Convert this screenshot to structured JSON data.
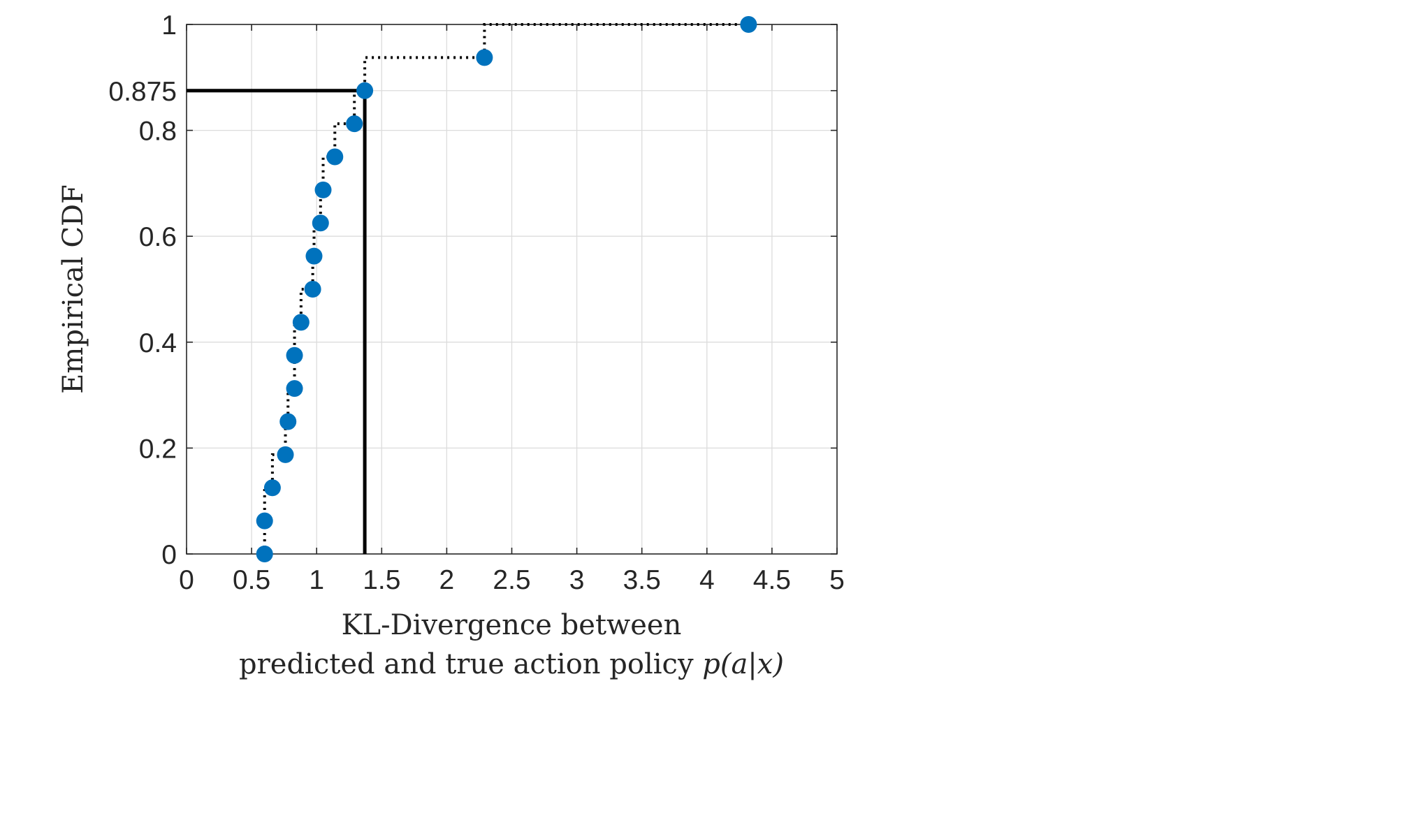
{
  "chart_data": {
    "type": "scatter",
    "title": "",
    "xlabel_lines": [
      "KL-Divergence between",
      "predicted and true action policy "
    ],
    "xlabel_math": "p(a|x)",
    "ylabel": "Empirical CDF",
    "xlim": [
      0,
      5
    ],
    "ylim": [
      0,
      1
    ],
    "xticks": [
      0,
      0.5,
      1,
      1.5,
      2,
      2.5,
      3,
      3.5,
      4,
      4.5,
      5
    ],
    "xtick_labels": [
      "0",
      "0.5",
      "1",
      "1.5",
      "2",
      "2.5",
      "3",
      "3.5",
      "4",
      "4.5",
      "5"
    ],
    "yticks": [
      0,
      0.2,
      0.4,
      0.6,
      0.8,
      0.875,
      1
    ],
    "ytick_labels": [
      "0",
      "0.2",
      "0.4",
      "0.6",
      "0.8",
      "0.875",
      "1"
    ],
    "grid": true,
    "marker_color": "#0072BD",
    "line_color": "#000000",
    "series": [
      {
        "values": [
          [
            0.6,
            0.0
          ],
          [
            0.6,
            0.0625
          ],
          [
            0.66,
            0.125
          ],
          [
            0.76,
            0.1875
          ],
          [
            0.78,
            0.25
          ],
          [
            0.83,
            0.3125
          ],
          [
            0.83,
            0.375
          ],
          [
            0.88,
            0.4375
          ],
          [
            0.97,
            0.5
          ],
          [
            0.98,
            0.5625
          ],
          [
            1.03,
            0.625
          ],
          [
            1.05,
            0.6875
          ],
          [
            1.14,
            0.75
          ],
          [
            1.29,
            0.8125
          ],
          [
            1.37,
            0.875
          ],
          [
            2.29,
            0.9375
          ],
          [
            4.32,
            1.0
          ]
        ]
      }
    ],
    "reference_lines": [
      {
        "orientation": "horizontal",
        "y": 0.875,
        "x_from": 0,
        "x_to": 1.37
      },
      {
        "orientation": "vertical",
        "x": 1.37,
        "y_from": 0,
        "y_to": 0.875
      }
    ]
  }
}
